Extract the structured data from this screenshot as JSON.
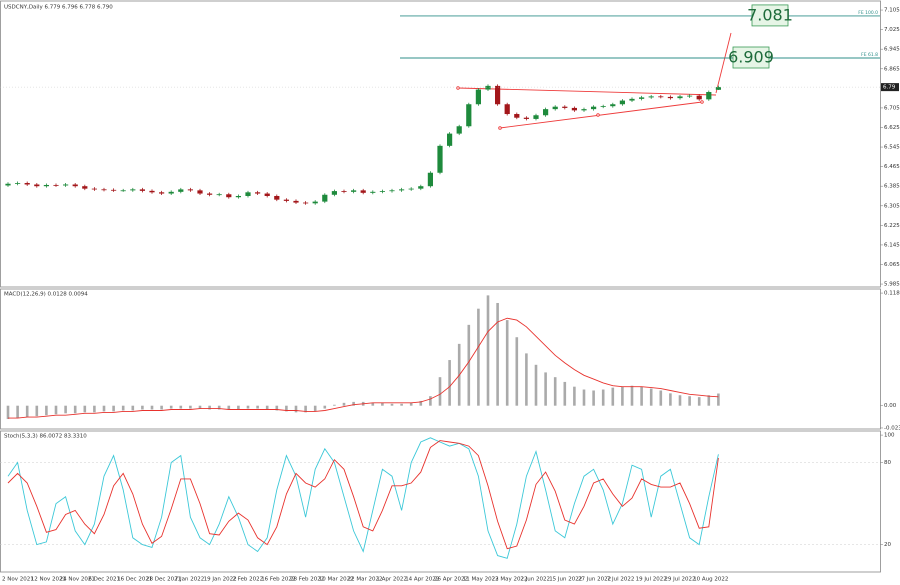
{
  "chart_data": [
    {
      "type": "candlestick",
      "title": "USDCNY,Daily  6.779 6.796 6.778 6.790",
      "categories": [
        "2 Nov 2021",
        null,
        null,
        "12 Nov 2021",
        null,
        null,
        "24 Nov 2021",
        null,
        null,
        "6 Dec 2021",
        null,
        null,
        "16 Dec 2021",
        null,
        null,
        "28 Dec 2021",
        null,
        null,
        "7 Jan 2022",
        null,
        null,
        "19 Jan 2022",
        null,
        null,
        "2 Feb 2022",
        null,
        null,
        "16 Feb 2022",
        null,
        null,
        "28 Feb 2022",
        null,
        null,
        "10 Mar 2022",
        null,
        null,
        "22 Mar 2022",
        null,
        null,
        "1 Apr 2022",
        null,
        null,
        "14 Apr 2022",
        null,
        null,
        "26 Apr 2022",
        null,
        null,
        "11 May 2022",
        null,
        null,
        "23 May 2022",
        null,
        null,
        "2 Jun 2022",
        null,
        null,
        "15 Jun 2022",
        null,
        null,
        "27 Jun 2022",
        null,
        null,
        "7 Jul 2022",
        null,
        null,
        "19 Jul 2022",
        null,
        null,
        "29 Jul 2022",
        null,
        null,
        "10 Aug 2022",
        null,
        null
      ],
      "open": [
        6.388,
        6.395,
        6.398,
        6.392,
        6.385,
        6.39,
        6.388,
        6.392,
        6.385,
        6.375,
        6.372,
        6.37,
        6.368,
        6.368,
        6.372,
        6.366,
        6.36,
        6.355,
        6.362,
        6.372,
        6.368,
        6.355,
        6.35,
        6.352,
        6.34,
        6.345,
        6.36,
        6.355,
        6.345,
        6.33,
        6.325,
        6.318,
        6.315,
        6.322,
        6.35,
        6.365,
        6.362,
        6.368,
        6.358,
        6.362,
        6.365,
        6.368,
        6.372,
        6.375,
        6.385,
        6.44,
        6.55,
        6.6,
        6.63,
        6.72,
        6.78,
        6.795,
        6.72,
        6.68,
        6.665,
        6.66,
        6.675,
        6.7,
        6.71,
        6.705,
        6.695,
        6.7,
        6.71,
        6.712,
        6.72,
        6.735,
        6.742,
        6.748,
        6.752,
        6.75,
        6.745,
        6.752,
        6.755,
        6.74,
        6.779
      ],
      "high": [
        6.401,
        6.404,
        6.404,
        6.398,
        6.396,
        6.396,
        6.398,
        6.398,
        6.391,
        6.381,
        6.378,
        6.376,
        6.374,
        6.378,
        6.378,
        6.372,
        6.366,
        6.368,
        6.378,
        6.378,
        6.374,
        6.361,
        6.358,
        6.358,
        6.351,
        6.366,
        6.366,
        6.361,
        6.351,
        6.336,
        6.331,
        6.324,
        6.328,
        6.356,
        6.371,
        6.371,
        6.374,
        6.374,
        6.368,
        6.371,
        6.374,
        6.378,
        6.381,
        6.391,
        6.446,
        6.556,
        6.606,
        6.636,
        6.726,
        6.786,
        6.801,
        6.801,
        6.726,
        6.686,
        6.671,
        6.681,
        6.706,
        6.716,
        6.716,
        6.711,
        6.706,
        6.716,
        6.718,
        6.726,
        6.741,
        6.748,
        6.754,
        6.758,
        6.758,
        6.756,
        6.758,
        6.761,
        6.761,
        6.776,
        6.796
      ],
      "low": [
        6.382,
        6.389,
        6.386,
        6.379,
        6.379,
        6.382,
        6.382,
        6.379,
        6.369,
        6.366,
        6.364,
        6.362,
        6.362,
        6.362,
        6.36,
        6.354,
        6.349,
        6.349,
        6.356,
        6.362,
        6.349,
        6.344,
        6.344,
        6.334,
        6.334,
        6.339,
        6.349,
        6.339,
        6.324,
        6.319,
        6.312,
        6.309,
        6.309,
        6.316,
        6.344,
        6.356,
        6.356,
        6.352,
        6.352,
        6.356,
        6.359,
        6.362,
        6.366,
        6.369,
        6.379,
        6.434,
        6.544,
        6.594,
        6.624,
        6.714,
        6.774,
        6.714,
        6.674,
        6.659,
        6.654,
        6.654,
        6.669,
        6.694,
        6.699,
        6.689,
        6.689,
        6.694,
        6.704,
        6.706,
        6.714,
        6.729,
        6.736,
        6.742,
        6.744,
        6.739,
        6.739,
        6.746,
        6.734,
        6.734,
        6.778
      ],
      "close": [
        6.395,
        6.398,
        6.392,
        6.385,
        6.39,
        6.388,
        6.392,
        6.385,
        6.375,
        6.372,
        6.37,
        6.368,
        6.368,
        6.372,
        6.366,
        6.36,
        6.355,
        6.362,
        6.372,
        6.368,
        6.355,
        6.35,
        6.352,
        6.34,
        6.345,
        6.36,
        6.355,
        6.345,
        6.33,
        6.325,
        6.318,
        6.315,
        6.322,
        6.35,
        6.365,
        6.362,
        6.368,
        6.358,
        6.362,
        6.365,
        6.368,
        6.372,
        6.375,
        6.385,
        6.44,
        6.55,
        6.6,
        6.63,
        6.72,
        6.78,
        6.795,
        6.72,
        6.68,
        6.665,
        6.66,
        6.675,
        6.7,
        6.71,
        6.705,
        6.695,
        6.7,
        6.71,
        6.712,
        6.72,
        6.735,
        6.742,
        6.748,
        6.752,
        6.75,
        6.745,
        6.752,
        6.755,
        6.74,
        6.77,
        6.79
      ],
      "up_color": "#1e8a3c",
      "down_color": "#a3161a",
      "ylim": [
        5.973,
        7.142
      ],
      "yticks": [
        7.105,
        7.025,
        6.945,
        6.865,
        6.705,
        6.625,
        6.545,
        6.465,
        6.385,
        6.305,
        6.225,
        6.145,
        6.065,
        5.985
      ],
      "annotations": [
        {
          "label": "FE 100.0",
          "value": 7.081
        },
        {
          "label": "FE 61.8",
          "value": 6.909
        }
      ],
      "annotation_color": "#2f8f8a"
    },
    {
      "type": "macd",
      "title": "MACD(12,26,9) 0.0128 0.0094",
      "histogram": [
        -0.014,
        -0.013,
        -0.012,
        -0.011,
        -0.01,
        -0.009,
        -0.008,
        -0.008,
        -0.007,
        -0.007,
        -0.006,
        -0.006,
        -0.005,
        -0.005,
        -0.004,
        -0.004,
        -0.004,
        -0.003,
        -0.003,
        -0.003,
        -0.003,
        -0.004,
        -0.004,
        -0.004,
        -0.004,
        -0.003,
        -0.003,
        -0.004,
        -0.005,
        -0.006,
        -0.007,
        -0.007,
        -0.006,
        -0.003,
        0.001,
        0.003,
        0.004,
        0.004,
        0.003,
        0.003,
        0.002,
        0.002,
        0.003,
        0.005,
        0.01,
        0.03,
        0.048,
        0.065,
        0.085,
        0.102,
        0.116,
        0.108,
        0.09,
        0.072,
        0.055,
        0.043,
        0.035,
        0.03,
        0.025,
        0.02,
        0.017,
        0.016,
        0.017,
        0.019,
        0.02,
        0.021,
        0.02,
        0.018,
        0.016,
        0.013,
        0.011,
        0.01,
        0.009,
        0.011,
        0.0128
      ],
      "signal": [
        -0.013,
        -0.013,
        -0.012,
        -0.012,
        -0.011,
        -0.01,
        -0.01,
        -0.009,
        -0.008,
        -0.008,
        -0.007,
        -0.007,
        -0.006,
        -0.006,
        -0.005,
        -0.005,
        -0.005,
        -0.004,
        -0.004,
        -0.004,
        -0.003,
        -0.003,
        -0.003,
        -0.004,
        -0.004,
        -0.004,
        -0.004,
        -0.004,
        -0.004,
        -0.005,
        -0.005,
        -0.006,
        -0.006,
        -0.005,
        -0.003,
        -0.001,
        0.001,
        0.002,
        0.003,
        0.003,
        0.003,
        0.003,
        0.003,
        0.004,
        0.007,
        0.012,
        0.02,
        0.032,
        0.046,
        0.062,
        0.078,
        0.088,
        0.092,
        0.09,
        0.083,
        0.073,
        0.063,
        0.053,
        0.045,
        0.038,
        0.032,
        0.028,
        0.024,
        0.021,
        0.02,
        0.02,
        0.02,
        0.019,
        0.018,
        0.016,
        0.014,
        0.012,
        0.011,
        0.01,
        0.0094
      ],
      "histogram_color": "#aaaaaa",
      "signal_color": "#e8322d",
      "ylim": [
        -0.0245,
        0.1227
      ],
      "yticks": [
        0.1184,
        {
          "value": 0,
          "label": "0.00"
        },
        -0.0234
      ]
    },
    {
      "type": "stochastic",
      "title": "Stoch(5,3,3) 86.0072 83.3310",
      "k": [
        70,
        80,
        45,
        20,
        22,
        50,
        55,
        30,
        20,
        35,
        70,
        85,
        60,
        25,
        20,
        18,
        40,
        80,
        85,
        40,
        25,
        20,
        35,
        55,
        40,
        20,
        15,
        25,
        60,
        85,
        70,
        40,
        75,
        90,
        80,
        55,
        30,
        15,
        45,
        75,
        70,
        45,
        80,
        95,
        98,
        95,
        92,
        94,
        90,
        70,
        30,
        12,
        10,
        35,
        70,
        88,
        60,
        30,
        25,
        50,
        70,
        75,
        60,
        35,
        50,
        78,
        75,
        40,
        70,
        75,
        50,
        25,
        20,
        55,
        86.0072
      ],
      "d": [
        65,
        72,
        65,
        48,
        29,
        31,
        42,
        45,
        35,
        28,
        42,
        63,
        72,
        57,
        35,
        21,
        26,
        46,
        68,
        68,
        50,
        28,
        27,
        37,
        43,
        38,
        25,
        20,
        33,
        57,
        72,
        65,
        62,
        68,
        82,
        75,
        55,
        33,
        30,
        45,
        63,
        63,
        65,
        73,
        91,
        96,
        95,
        94,
        92,
        85,
        63,
        37,
        17,
        19,
        38,
        64,
        73,
        59,
        38,
        35,
        48,
        65,
        68,
        57,
        48,
        54,
        68,
        64,
        62,
        62,
        65,
        50,
        32,
        33,
        83.331
      ],
      "k_color": "#3cc8d8",
      "d_color": "#e8322d",
      "ylim": [
        0,
        103
      ],
      "yticks": [
        100,
        80,
        20
      ]
    }
  ]
}
